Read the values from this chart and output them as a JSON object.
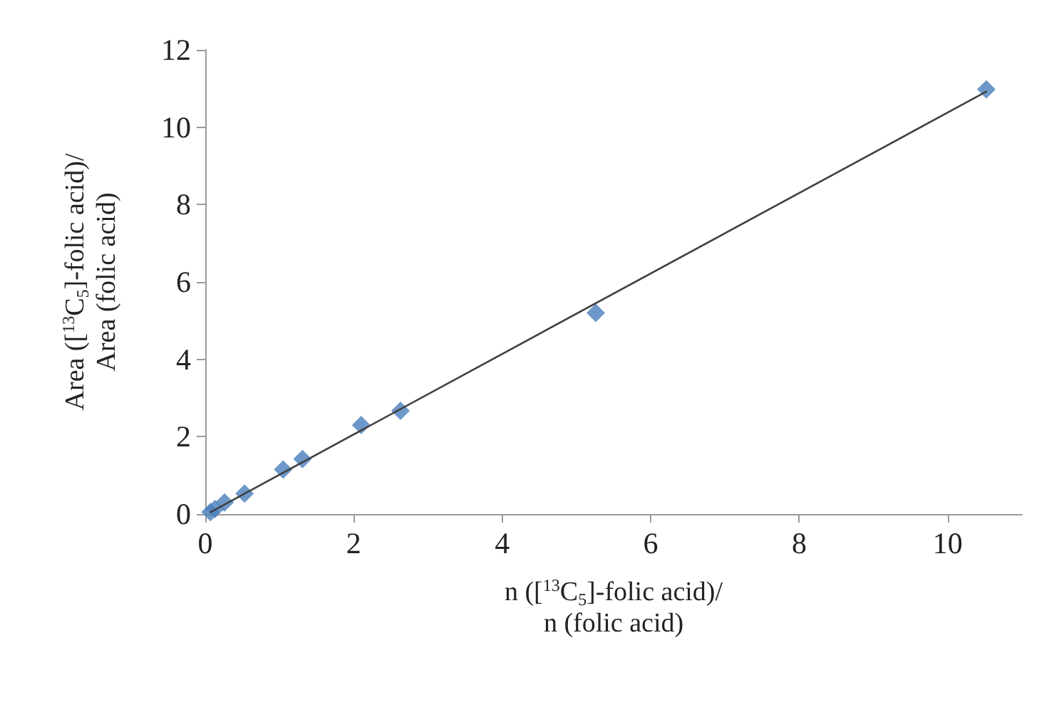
{
  "chart_data": {
    "type": "scatter",
    "xlabel": "n ([$^{13}$C$_{5}$]-folic acid)/\nn (folic acid)",
    "ylabel": "Area ([$^{13}$C$_{5}$]-folic acid)/\nArea (folic acid)",
    "x": [
      0.07,
      0.13,
      0.26,
      0.53,
      1.05,
      1.31,
      2.1,
      2.63,
      5.26,
      10.52
    ],
    "series": [
      {
        "type": "scatter",
        "color": "#4a7ebb",
        "marker": "diamond",
        "values": [
          0.05,
          0.13,
          0.3,
          0.53,
          1.15,
          1.42,
          2.3,
          2.67,
          5.2,
          10.98
        ]
      },
      {
        "type": "line",
        "color": "#404040",
        "marker": "none",
        "line_style": "solid",
        "x": [
          0.07,
          10.52
        ],
        "values": [
          0.05,
          10.92
        ]
      }
    ],
    "xlim": [
      0,
      11
    ],
    "xticks": [
      0,
      2,
      4,
      6,
      8,
      10
    ],
    "ylim": [
      0,
      12
    ],
    "yticks": [
      0,
      2,
      4,
      6,
      8,
      10,
      12
    ],
    "grid": false
  }
}
